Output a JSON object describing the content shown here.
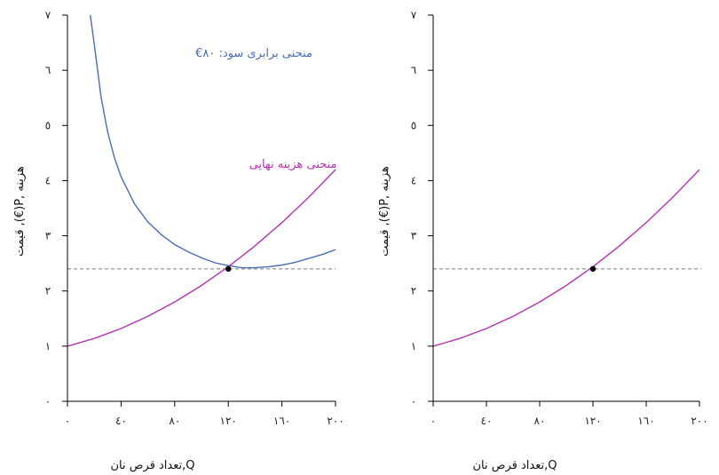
{
  "colors": {
    "isoprofit": "#4a6db5",
    "marginal_cost": "#b532b5",
    "dashed": "#777777",
    "point": "#000000"
  },
  "chart_data": [
    {
      "type": "line",
      "xlabel": "Q,تعداد قرص نان",
      "ylabel": "هزینه ,P(€), قیمت",
      "x_ticks": [
        0,
        40,
        80,
        120,
        160,
        200
      ],
      "x_tick_labels": [
        "٠",
        "٤٠",
        "٨٠",
        "١٢٠",
        "١٦٠",
        "٢٠٠"
      ],
      "y_ticks": [
        0,
        1,
        2,
        3,
        4,
        5,
        6,
        7
      ],
      "y_tick_labels": [
        "٠",
        "١",
        "٢",
        "٣",
        "٤",
        "٥",
        "٦",
        "٧"
      ],
      "xlim": [
        0,
        200
      ],
      "ylim": [
        0,
        7
      ],
      "series": [
        {
          "name": "منحنی برابری سود: ٨٠€",
          "color": "#4a6db5",
          "x": [
            17,
            20,
            25,
            30,
            35,
            40,
            50,
            60,
            70,
            80,
            90,
            100,
            110,
            120,
            130,
            140,
            150,
            160,
            170,
            180,
            190,
            200
          ],
          "y": [
            7.0,
            6.47,
            5.52,
            4.88,
            4.42,
            4.07,
            3.58,
            3.25,
            3.02,
            2.84,
            2.71,
            2.6,
            2.51,
            2.46,
            2.42,
            2.42,
            2.44,
            2.47,
            2.52,
            2.59,
            2.66,
            2.75
          ]
        },
        {
          "name": "منحنی هزینه نهایی",
          "color": "#b532b5",
          "x": [
            0,
            20,
            40,
            60,
            80,
            100,
            120,
            140,
            160,
            180,
            200
          ],
          "y": [
            1.0,
            1.14,
            1.32,
            1.54,
            1.8,
            2.1,
            2.44,
            2.82,
            3.24,
            3.7,
            4.2
          ]
        }
      ],
      "reference_line": {
        "y": 2.4,
        "style": "dashed"
      },
      "point": {
        "x": 120,
        "y": 2.4
      }
    },
    {
      "type": "line",
      "xlabel": "Q,تعداد قرص نان",
      "ylabel": "هزینه ,P(€), قیمت",
      "x_ticks": [
        0,
        40,
        80,
        120,
        160,
        200
      ],
      "x_tick_labels": [
        "٠",
        "٤٠",
        "٨٠",
        "١٢٠",
        "١٦٠",
        "٢٠٠"
      ],
      "y_ticks": [
        0,
        1,
        2,
        3,
        4,
        5,
        6,
        7
      ],
      "y_tick_labels": [
        "٠",
        "١",
        "٢",
        "٣",
        "٤",
        "٥",
        "٦",
        "٧"
      ],
      "xlim": [
        0,
        200
      ],
      "ylim": [
        0,
        7
      ],
      "series": [
        {
          "color": "#b532b5",
          "x": [
            0,
            20,
            40,
            60,
            80,
            100,
            120,
            140,
            160,
            180,
            200
          ],
          "y": [
            1.0,
            1.14,
            1.32,
            1.54,
            1.8,
            2.1,
            2.44,
            2.82,
            3.24,
            3.7,
            4.2
          ]
        }
      ],
      "reference_line": {
        "y": 2.4,
        "style": "dashed"
      },
      "point": {
        "x": 120,
        "y": 2.4
      }
    }
  ]
}
